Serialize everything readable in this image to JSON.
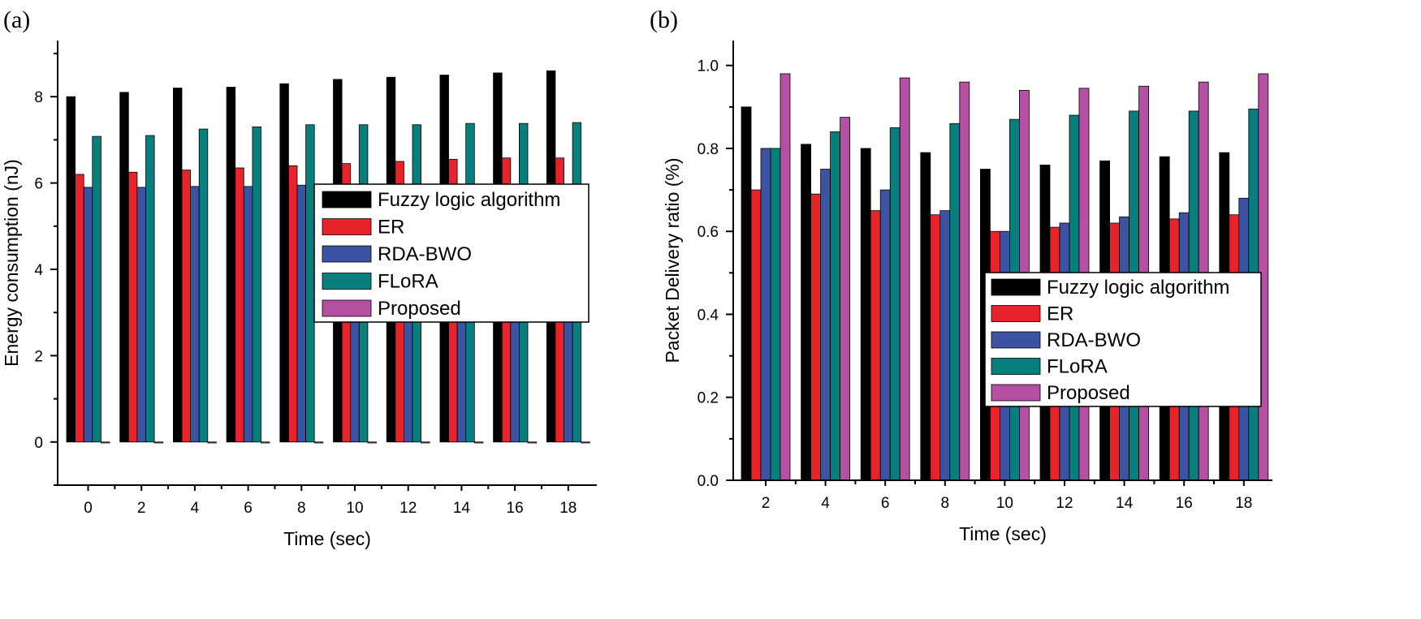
{
  "chart_data": [
    {
      "type": "bar",
      "panel_label": "(a)",
      "title": "",
      "xlabel": "Time (sec)",
      "ylabel": "Energy consumption (nJ)",
      "categories": [
        "0",
        "2",
        "4",
        "6",
        "8",
        "10",
        "12",
        "14",
        "16",
        "18"
      ],
      "ylim": [
        -1,
        9.3
      ],
      "yticks": [
        0,
        2,
        4,
        6,
        8
      ],
      "grid": false,
      "legend_position": "center-right",
      "series": [
        {
          "name": "Fuzzy logic algorithm",
          "color": "#000000",
          "values": [
            8.0,
            8.1,
            8.2,
            8.22,
            8.3,
            8.4,
            8.45,
            8.5,
            8.55,
            8.6
          ]
        },
        {
          "name": "ER",
          "color": "#e8232b",
          "values": [
            6.2,
            6.25,
            6.3,
            6.35,
            6.4,
            6.45,
            6.5,
            6.55,
            6.58,
            6.58
          ]
        },
        {
          "name": "RDA-BWO",
          "color": "#3c53a4",
          "values": [
            5.9,
            5.9,
            5.92,
            5.92,
            5.95,
            5.95,
            5.95,
            5.95,
            5.95,
            5.95
          ]
        },
        {
          "name": "FLoRA",
          "color": "#087f7d",
          "values": [
            7.08,
            7.1,
            7.25,
            7.3,
            7.35,
            7.35,
            7.35,
            7.38,
            7.38,
            7.4
          ]
        },
        {
          "name": "Proposed",
          "color": "#b550a2",
          "values": [
            -0.02,
            0.0,
            0.0,
            0.0,
            0.0,
            0.0,
            0.0,
            0.0,
            0.0,
            0.0
          ]
        }
      ]
    },
    {
      "type": "bar",
      "panel_label": "(b)",
      "title": "",
      "xlabel": "Time (sec)",
      "ylabel": "Packet Delivery ratio (%)",
      "categories": [
        "2",
        "4",
        "6",
        "8",
        "10",
        "12",
        "14",
        "16",
        "18"
      ],
      "ylim": [
        0,
        1.06
      ],
      "yticks": [
        0.0,
        0.2,
        0.4,
        0.6,
        0.8,
        1.0
      ],
      "grid": false,
      "legend_position": "center-right",
      "series": [
        {
          "name": "Fuzzy logic algorithm",
          "color": "#000000",
          "values": [
            0.9,
            0.81,
            0.8,
            0.79,
            0.75,
            0.76,
            0.77,
            0.78,
            0.79
          ]
        },
        {
          "name": "ER",
          "color": "#e8232b",
          "values": [
            0.7,
            0.69,
            0.65,
            0.64,
            0.6,
            0.61,
            0.62,
            0.63,
            0.64
          ]
        },
        {
          "name": "RDA-BWO",
          "color": "#3c53a4",
          "values": [
            0.8,
            0.75,
            0.7,
            0.65,
            0.6,
            0.62,
            0.635,
            0.645,
            0.68
          ]
        },
        {
          "name": "FLoRA",
          "color": "#087f7d",
          "values": [
            0.8,
            0.84,
            0.85,
            0.86,
            0.87,
            0.88,
            0.89,
            0.89,
            0.895
          ]
        },
        {
          "name": "Proposed",
          "color": "#b550a2",
          "values": [
            0.98,
            0.875,
            0.97,
            0.96,
            0.94,
            0.945,
            0.95,
            0.96,
            0.98
          ]
        }
      ]
    }
  ]
}
